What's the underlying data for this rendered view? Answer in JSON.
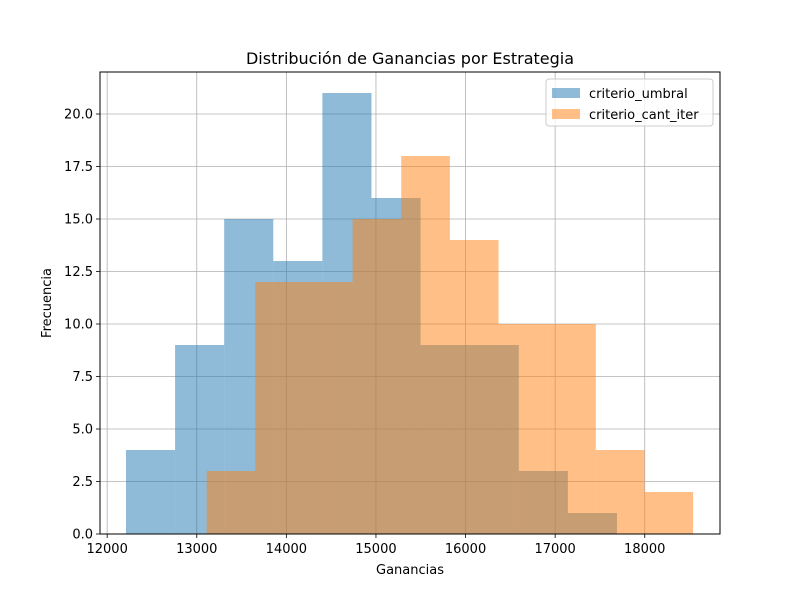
{
  "chart_data": {
    "type": "histogram",
    "title": "Distribución de Ganancias por Estrategia",
    "xlabel": "Ganancias",
    "ylabel": "Frecuencia",
    "xlim": [
      11920,
      18840
    ],
    "ylim": [
      0,
      22
    ],
    "xticks": [
      12000,
      13000,
      14000,
      15000,
      16000,
      17000,
      18000
    ],
    "yticks": [
      0.0,
      2.5,
      5.0,
      7.5,
      10.0,
      12.5,
      15.0,
      17.5,
      20.0
    ],
    "xtick_labels": [
      "12000",
      "13000",
      "14000",
      "15000",
      "16000",
      "17000",
      "18000"
    ],
    "ytick_labels": [
      "0.0",
      "2.5",
      "5.0",
      "7.5",
      "10.0",
      "12.5",
      "15.0",
      "17.5",
      "20.0"
    ],
    "grid": true,
    "legend_position": "top-right",
    "series": [
      {
        "name": "criterio_umbral",
        "color": "#1f77b4",
        "alpha": 0.5,
        "bin_edges": [
          12210,
          12758,
          13306,
          13854,
          14402,
          14950,
          15498,
          16046,
          16594,
          17142,
          17690
        ],
        "counts": [
          4,
          9,
          15,
          13,
          21,
          16,
          9,
          9,
          3,
          1
        ]
      },
      {
        "name": "criterio_cant_iter",
        "color": "#ff7f0e",
        "alpha": 0.5,
        "bin_edges": [
          13110,
          13653,
          14196,
          14739,
          15282,
          15825,
          16368,
          16911,
          17454,
          17997,
          18540
        ],
        "counts": [
          3,
          12,
          12,
          15,
          18,
          14,
          10,
          10,
          4,
          2
        ]
      }
    ]
  }
}
